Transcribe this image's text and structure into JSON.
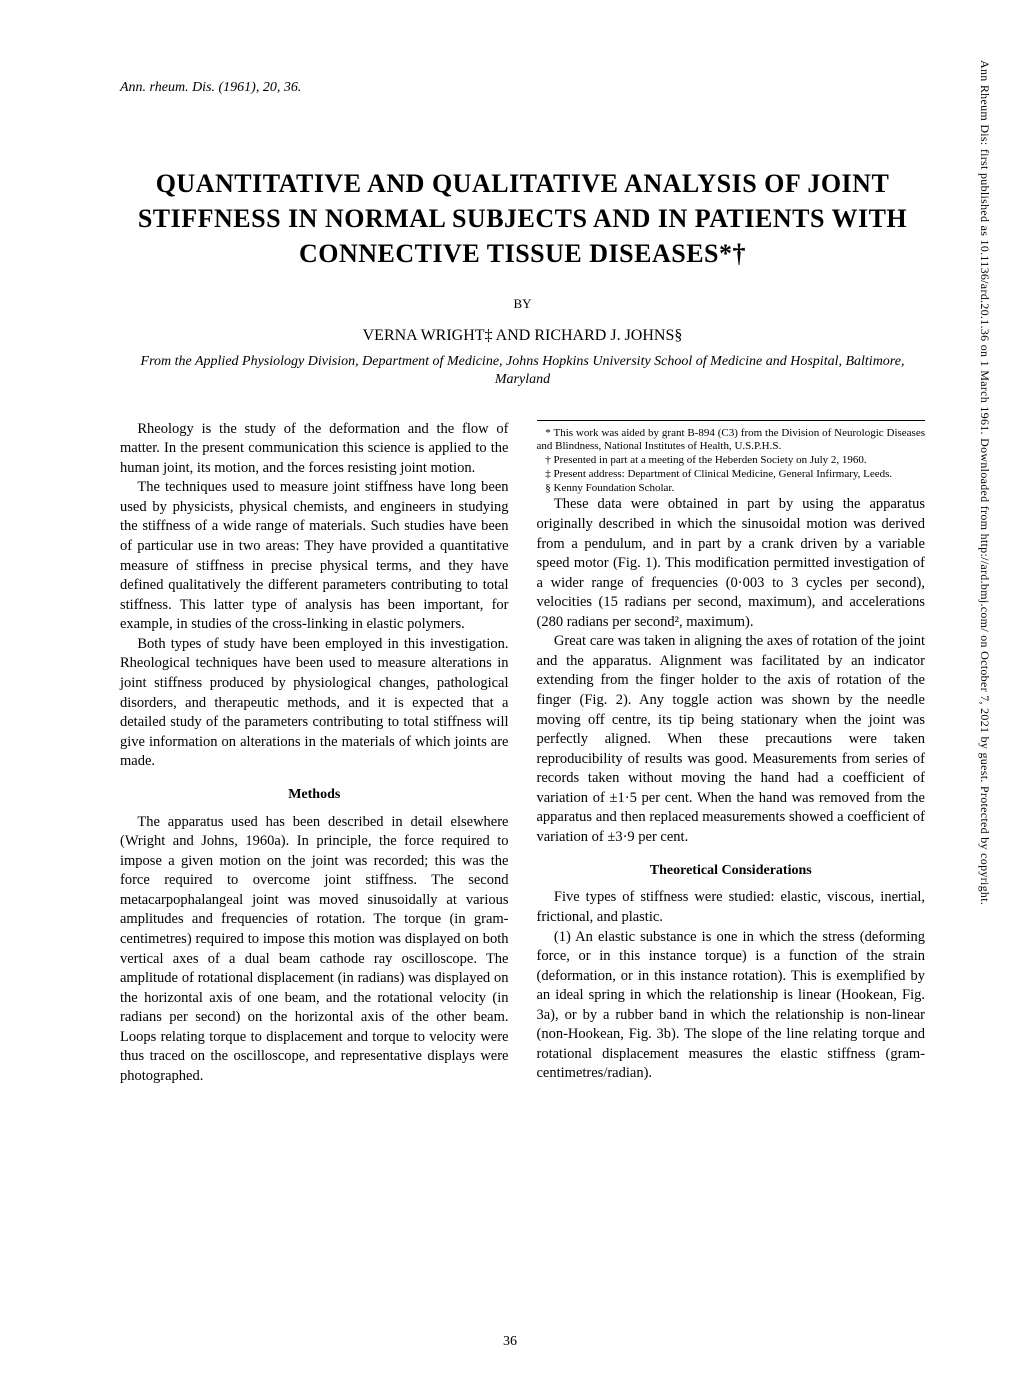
{
  "journal_ref": "Ann. rheum. Dis. (1961), 20, 36.",
  "title": "QUANTITATIVE AND QUALITATIVE ANALYSIS OF JOINT STIFFNESS IN NORMAL SUBJECTS AND IN PATIENTS WITH CONNECTIVE TISSUE DISEASES*†",
  "by": "BY",
  "authors": "VERNA WRIGHT‡ AND RICHARD J. JOHNS§",
  "affiliation": "From the Applied Physiology Division, Department of Medicine, Johns Hopkins University School of Medicine and Hospital, Baltimore, Maryland",
  "body": {
    "p1": "Rheology is the study of the deformation and the flow of matter. In the present communication this science is applied to the human joint, its motion, and the forces resisting joint motion.",
    "p2": "The techniques used to measure joint stiffness have long been used by physicists, physical chemists, and engineers in studying the stiffness of a wide range of materials. Such studies have been of particular use in two areas: They have provided a quantitative measure of stiffness in precise physical terms, and they have defined qualitatively the different parameters contributing to total stiffness. This latter type of analysis has been important, for example, in studies of the cross-linking in elastic polymers.",
    "p3": "Both types of study have been employed in this investigation. Rheological techniques have been used to measure alterations in joint stiffness produced by physiological changes, pathological disorders, and therapeutic methods, and it is expected that a detailed study of the parameters contributing to total stiffness will give information on alterations in the materials of which joints are made.",
    "methods_heading": "Methods",
    "p4": "The apparatus used has been described in detail elsewhere (Wright and Johns, 1960a). In principle, the force required to impose a given motion on the joint was recorded; this was the force required to overcome joint stiffness. The second metacarpophalangeal joint was moved sinusoidally at various amplitudes and frequencies of rotation. The torque (in gram-centimetres) required to impose this motion was displayed on both vertical axes of a dual beam cathode ray oscilloscope. The amplitude of rotational displacement (in radians) was displayed on the horizontal axis of one beam, and the rotational velocity (in radians per second) on the horizontal axis of the other beam. Loops relating torque to displacement and torque to velocity were thus traced on the oscilloscope, and representative displays were photographed.",
    "p5": "These data were obtained in part by using the apparatus originally described in which the sinusoidal motion was derived from a pendulum, and in part by a crank driven by a variable speed motor (Fig. 1). This modification permitted investigation of a wider range of frequencies (0·003 to 3 cycles per second), velocities (15 radians per second, maximum), and accelerations (280 radians per second², maximum).",
    "p6": "Great care was taken in aligning the axes of rotation of the joint and the apparatus. Alignment was facilitated by an indicator extending from the finger holder to the axis of rotation of the finger (Fig. 2). Any toggle action was shown by the needle moving off centre, its tip being stationary when the joint was perfectly aligned. When these precautions were taken reproducibility of results was good. Measurements from series of records taken without moving the hand had a coefficient of variation of ±1·5 per cent. When the hand was removed from the apparatus and then replaced measurements showed a coefficient of variation of ±3·9 per cent.",
    "theoretical_heading": "Theoretical Considerations",
    "p7": "Five types of stiffness were studied: elastic, viscous, inertial, frictional, and plastic.",
    "p8": "(1) An elastic substance is one in which the stress (deforming force, or in this instance torque) is a function of the strain (deformation, or in this instance rotation). This is exemplified by an ideal spring in which the relationship is linear (Hookean, Fig. 3a), or by a rubber band in which the relationship is non-linear (non-Hookean, Fig. 3b). The slope of the line relating torque and rotational displacement measures the elastic stiffness (gram-centimetres/radian)."
  },
  "footnotes": {
    "f1": "* This work was aided by grant B-894 (C3) from the Division of Neurologic Diseases and Blindness, National Institutes of Health, U.S.P.H.S.",
    "f2": "† Presented in part at a meeting of the Heberden Society on July 2, 1960.",
    "f3": "‡ Present address: Department of Clinical Medicine, General Infirmary, Leeds.",
    "f4": "§ Kenny Foundation Scholar."
  },
  "page_number": "36",
  "side_text": "Ann Rheum Dis: first published as 10.1136/ard.20.1.36 on 1 March 1961. Downloaded from http://ard.bmj.com/ on October 7, 2021 by guest. Protected by copyright."
}
